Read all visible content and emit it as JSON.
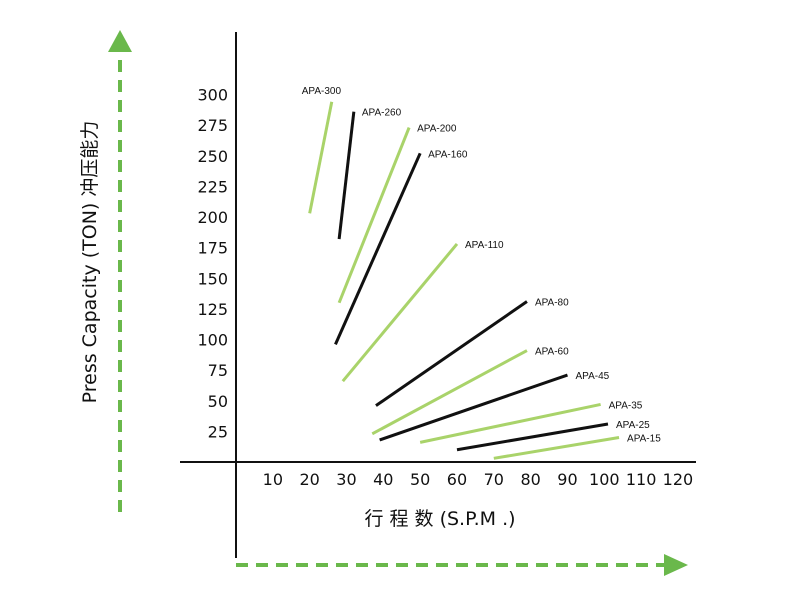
{
  "chart_data": {
    "type": "line",
    "ylabel": "Press Capacity (TON)  冲压能力",
    "xlabel": "行 程 数 (S.P.M .)",
    "x_ticks": [
      10,
      20,
      30,
      40,
      50,
      60,
      70,
      80,
      90,
      100,
      110,
      120
    ],
    "y_ticks": [
      25,
      50,
      75,
      100,
      125,
      150,
      175,
      200,
      225,
      250,
      275,
      300
    ],
    "xlim": [
      0,
      120
    ],
    "ylim": [
      0,
      300
    ],
    "grid": false,
    "colors": {
      "green": "#a9d36a",
      "black": "#111111",
      "arrow": "#6ab84b"
    },
    "series": [
      {
        "name": "APA-300",
        "color": "green",
        "x": [
          20,
          26
        ],
        "y": [
          203,
          294
        ]
      },
      {
        "name": "APA-260",
        "color": "black",
        "x": [
          28,
          32
        ],
        "y": [
          182,
          286
        ]
      },
      {
        "name": "APA-200",
        "color": "green",
        "x": [
          28,
          47
        ],
        "y": [
          130,
          273
        ]
      },
      {
        "name": "APA-160",
        "color": "black",
        "x": [
          27,
          50
        ],
        "y": [
          96,
          252
        ]
      },
      {
        "name": "APA-110",
        "color": "green",
        "x": [
          29,
          60
        ],
        "y": [
          66,
          178
        ]
      },
      {
        "name": "APA-80",
        "color": "black",
        "x": [
          38,
          79
        ],
        "y": [
          46,
          131
        ]
      },
      {
        "name": "APA-60",
        "color": "green",
        "x": [
          37,
          79
        ],
        "y": [
          23,
          91
        ]
      },
      {
        "name": "APA-45",
        "color": "black",
        "x": [
          39,
          90
        ],
        "y": [
          18,
          71
        ]
      },
      {
        "name": "APA-35",
        "color": "green",
        "x": [
          50,
          99
        ],
        "y": [
          16,
          47
        ]
      },
      {
        "name": "APA-25",
        "color": "black",
        "x": [
          60,
          101
        ],
        "y": [
          10,
          31
        ]
      },
      {
        "name": "APA-15",
        "color": "green",
        "x": [
          70,
          104
        ],
        "y": [
          3,
          20
        ]
      }
    ]
  }
}
